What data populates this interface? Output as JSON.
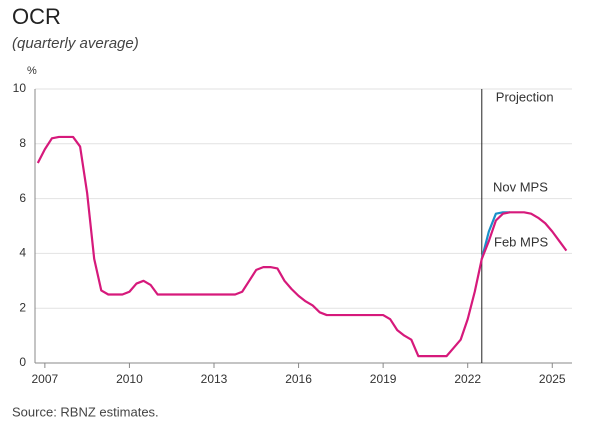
{
  "chart_data": {
    "type": "line",
    "title": "OCR",
    "subtitle": "(quarterly average)",
    "y_unit": "%",
    "source": "Source: RBNZ estimates.",
    "annotation": "Projection",
    "projection_start": 2022.5,
    "x": [
      2006.75,
      2007,
      2007.25,
      2007.5,
      2007.75,
      2008,
      2008.25,
      2008.5,
      2008.75,
      2009,
      2009.25,
      2009.5,
      2009.75,
      2010,
      2010.25,
      2010.5,
      2010.75,
      2011,
      2011.25,
      2011.5,
      2011.75,
      2012,
      2012.25,
      2012.5,
      2012.75,
      2013,
      2013.25,
      2013.5,
      2013.75,
      2014,
      2014.25,
      2014.5,
      2014.75,
      2015,
      2015.25,
      2015.5,
      2015.75,
      2016,
      2016.25,
      2016.5,
      2016.75,
      2017,
      2017.25,
      2017.5,
      2017.75,
      2018,
      2018.25,
      2018.5,
      2018.75,
      2019,
      2019.25,
      2019.5,
      2019.75,
      2020,
      2020.25,
      2020.5,
      2020.75,
      2021,
      2021.25,
      2021.5,
      2021.75,
      2022,
      2022.25,
      2022.5,
      2022.75,
      2023,
      2023.25,
      2023.5,
      2023.75,
      2024,
      2024.25,
      2024.5,
      2024.75,
      2025,
      2025.25,
      2025.5
    ],
    "series": [
      {
        "name": "Nov MPS",
        "color": "#1a8fc9",
        "values": [
          null,
          null,
          null,
          null,
          null,
          null,
          null,
          null,
          null,
          null,
          null,
          null,
          null,
          null,
          null,
          null,
          null,
          null,
          null,
          null,
          null,
          null,
          null,
          null,
          null,
          null,
          null,
          null,
          null,
          null,
          null,
          null,
          null,
          null,
          null,
          null,
          null,
          null,
          null,
          null,
          null,
          null,
          null,
          null,
          null,
          null,
          null,
          null,
          null,
          null,
          null,
          null,
          null,
          null,
          null,
          null,
          null,
          null,
          null,
          null,
          null,
          null,
          null,
          3.8,
          4.8,
          5.45,
          5.5,
          5.5,
          null,
          null,
          null,
          null,
          null,
          null,
          null,
          null
        ]
      },
      {
        "name": "Feb MPS",
        "color": "#d6197b",
        "values": [
          7.3,
          7.8,
          8.2,
          8.25,
          8.25,
          8.25,
          7.9,
          6.2,
          3.8,
          2.65,
          2.5,
          2.5,
          2.5,
          2.6,
          2.9,
          3.0,
          2.85,
          2.5,
          2.5,
          2.5,
          2.5,
          2.5,
          2.5,
          2.5,
          2.5,
          2.5,
          2.5,
          2.5,
          2.5,
          2.6,
          3.0,
          3.4,
          3.5,
          3.5,
          3.45,
          3.0,
          2.7,
          2.45,
          2.25,
          2.1,
          1.85,
          1.75,
          1.75,
          1.75,
          1.75,
          1.75,
          1.75,
          1.75,
          1.75,
          1.75,
          1.6,
          1.2,
          1.0,
          0.85,
          0.25,
          0.25,
          0.25,
          0.25,
          0.25,
          0.55,
          0.85,
          1.6,
          2.6,
          3.8,
          4.45,
          5.2,
          5.45,
          5.5,
          5.5,
          5.5,
          5.45,
          5.3,
          5.1,
          4.8,
          4.45,
          4.1
        ]
      }
    ],
    "xlim": [
      2006.65,
      2025.7
    ],
    "xticks": [
      2007,
      2010,
      2013,
      2016,
      2019,
      2022,
      2025
    ],
    "ylim": [
      0,
      10
    ],
    "yticks": [
      0,
      2,
      4,
      6,
      8,
      10
    ],
    "grid": true
  }
}
